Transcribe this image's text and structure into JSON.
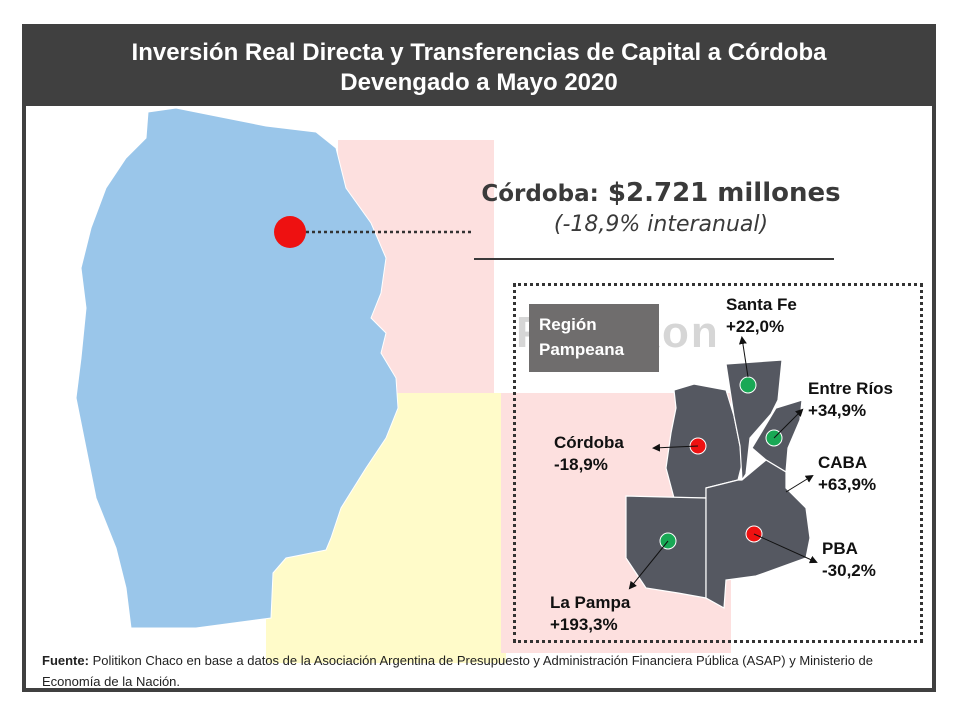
{
  "title": {
    "line1": "Inversión Real Directa y Transferencias de Capital a Córdoba",
    "line2": "Devengado a Mayo 2020"
  },
  "headline": {
    "province_label": "Córdoba:",
    "amount": "$2.721 millones",
    "change": "(-18,9% interanual)"
  },
  "region": {
    "label_line1": "Región",
    "label_line2": "Pampeana",
    "watermark": "Politikon"
  },
  "provinces": [
    {
      "name": "Santa Fe",
      "change": "+22,0%",
      "status": "positive"
    },
    {
      "name": "Entre Ríos",
      "change": "+34,9%",
      "status": "positive"
    },
    {
      "name": "CABA",
      "change": "+63,9%",
      "status": "positive"
    },
    {
      "name": "PBA",
      "change": "-30,2%",
      "status": "negative"
    },
    {
      "name": "La Pampa",
      "change": "+193,3%",
      "status": "positive"
    },
    {
      "name": "Córdoba",
      "change": "-18,9%",
      "status": "negative"
    }
  ],
  "colors": {
    "title_bar": "#404040",
    "cordoba_map": "#9ac6ea",
    "region_map": "#555861",
    "positive_dot": "#19a855",
    "negative_dot": "#ee1111",
    "highlight_pink": "#fde0df",
    "highlight_yellow": "#fffbc9"
  },
  "source": {
    "label": "Fuente:",
    "text": "Politikon Chaco en base a datos de la Asociación Argentina de Presupuesto y Administración Financiera Pública (ASAP) y Ministerio de Economía de la Nación."
  }
}
